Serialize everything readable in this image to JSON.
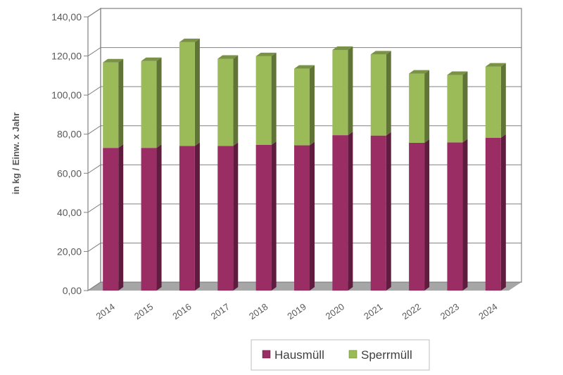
{
  "chart_data": {
    "type": "bar",
    "stacked": true,
    "three_d": true,
    "categories": [
      "2014",
      "2015",
      "2016",
      "2017",
      "2018",
      "2019",
      "2020",
      "2021",
      "2022",
      "2023",
      "2024"
    ],
    "series": [
      {
        "name": "Hausmüll",
        "color": "#9b2d65",
        "values": [
          73,
          73,
          74,
          74,
          74.5,
          74.3,
          79.5,
          79.3,
          75.6,
          75.8,
          78.2
        ]
      },
      {
        "name": "Sperrmüll",
        "color": "#9bbb59",
        "values": [
          43.7,
          44.4,
          53.1,
          44.6,
          45.4,
          39.2,
          43.6,
          41.5,
          35.4,
          34.5,
          36.4
        ]
      }
    ],
    "ylabel": "in kg / Einw. x Jahr",
    "ylim": [
      0,
      140
    ],
    "yticks": [
      "0,00",
      "20,00",
      "40,00",
      "60,00",
      "80,00",
      "100,00",
      "120,00",
      "140,00"
    ],
    "grid": true,
    "legend_position": "bottom-center"
  }
}
